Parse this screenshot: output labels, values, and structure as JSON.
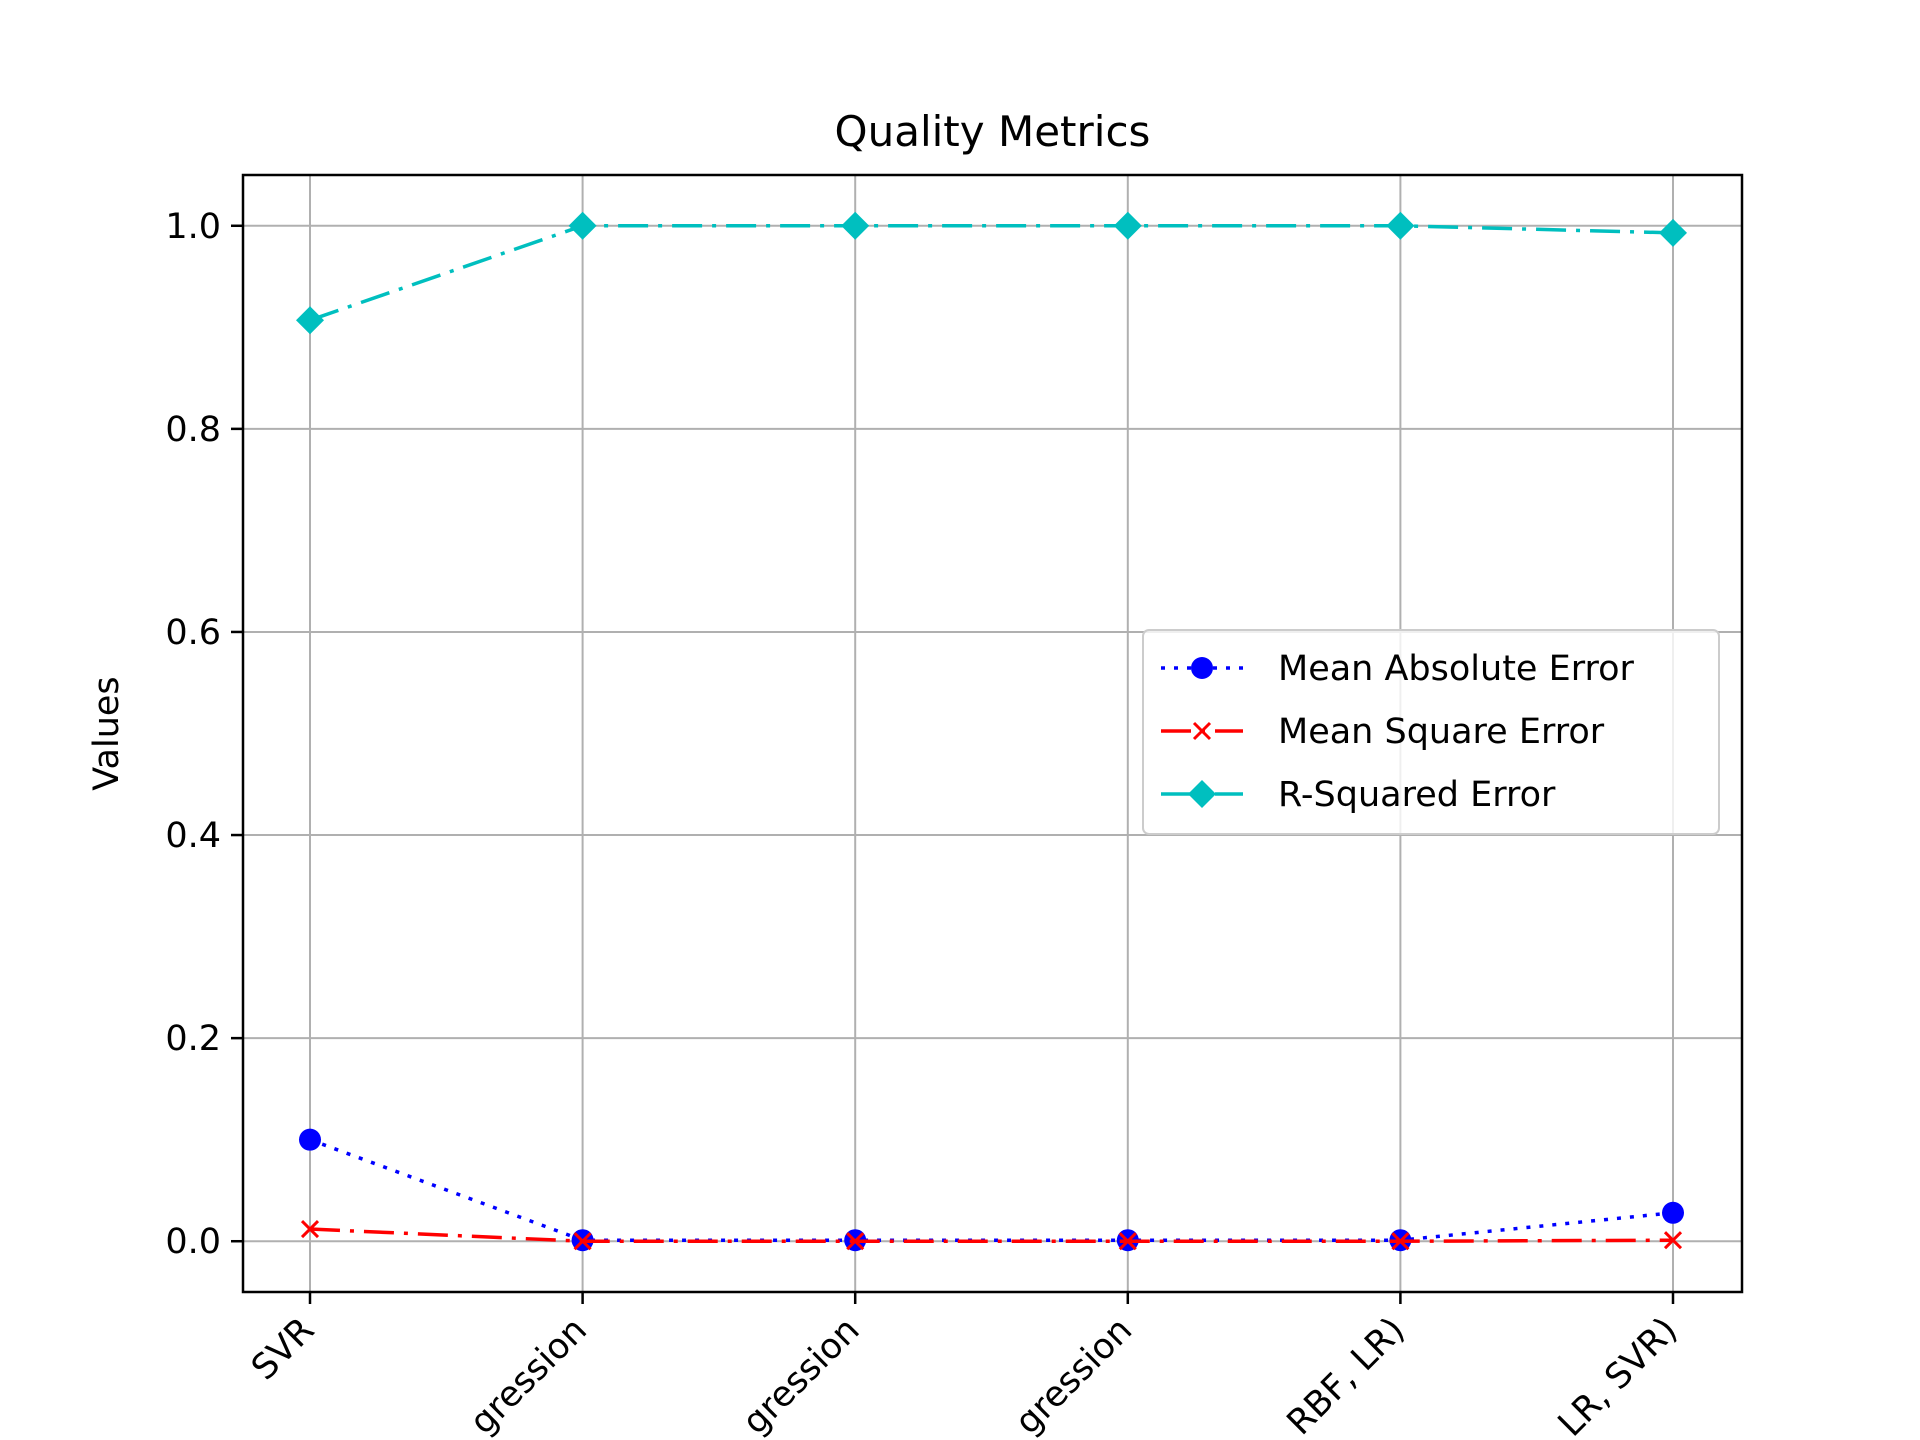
{
  "chart_data": {
    "type": "line",
    "title": "Quality Metrics",
    "xlabel": "",
    "ylabel": "Values",
    "categories": [
      "SVR",
      "gression",
      "gression",
      "gression",
      "RBF, LR)",
      "LR, SVR)"
    ],
    "ylim": [
      -0.05,
      1.05
    ],
    "yticks": [
      0.0,
      0.2,
      0.4,
      0.6,
      0.8,
      1.0
    ],
    "ytick_labels": [
      "0.0",
      "0.2",
      "0.4",
      "0.6",
      "0.8",
      "1.0"
    ],
    "grid": true,
    "legend_position": "center-right",
    "series": [
      {
        "name": "Mean Absolute Error",
        "color": "#0000ff",
        "linestyle": "dotted",
        "marker": "circle",
        "values": [
          0.1,
          0.001,
          0.001,
          0.001,
          0.001,
          0.028
        ]
      },
      {
        "name": "Mean Square Error",
        "color": "#ff0000",
        "linestyle": "dashdot",
        "marker": "x",
        "values": [
          0.012,
          0.0,
          0.0,
          0.0,
          0.0,
          0.001
        ]
      },
      {
        "name": "R-Squared Error",
        "color": "#00bfbf",
        "linestyle": "dashdot",
        "marker": "diamond",
        "values": [
          0.907,
          1.0,
          1.0,
          1.0,
          1.0,
          0.993
        ]
      }
    ]
  }
}
